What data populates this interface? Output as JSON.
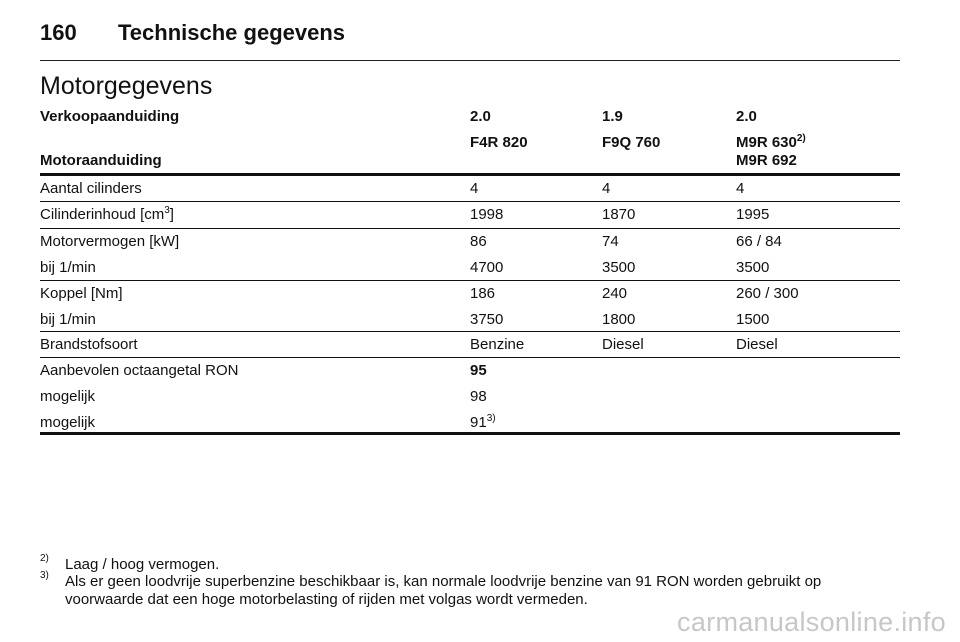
{
  "header": {
    "page_number": "160",
    "title": "Technische gegevens"
  },
  "section_title": "Motorgegevens",
  "table": {
    "sales_label": "Verkoopaanduiding",
    "engine_label": "Motoraanduiding",
    "columns": [
      {
        "sales": "2.0",
        "engine": "F4R 820",
        "engine_sup": "",
        "engine_line2": ""
      },
      {
        "sales": "1.9",
        "engine": "F9Q 760",
        "engine_sup": "",
        "engine_line2": ""
      },
      {
        "sales": "2.0",
        "engine": "M9R 630",
        "engine_sup": "2)",
        "engine_line2": "M9R 692"
      }
    ],
    "rows": [
      {
        "label": "Aantal cilinders",
        "values": [
          "4",
          "4",
          "4"
        ]
      },
      {
        "label": "Cilinderinhoud [cm",
        "label_sup": "3",
        "label_after": "]",
        "values": [
          "1998",
          "1870",
          "1995"
        ]
      },
      {
        "label": "Motorvermogen [kW]",
        "values": [
          "86",
          "74",
          "66 / 84"
        ]
      },
      {
        "label": "bij 1/min",
        "values": [
          "4700",
          "3500",
          "3500"
        ]
      },
      {
        "label": "Koppel [Nm]",
        "values": [
          "186",
          "240",
          "260 / 300"
        ]
      },
      {
        "label": "bij 1/min",
        "values": [
          "3750",
          "1800",
          "1500"
        ]
      },
      {
        "label": "Brandstofsoort",
        "values": [
          "Benzine",
          "Diesel",
          "Diesel"
        ]
      },
      {
        "label": "Aanbevolen octaangetal RON",
        "values": [
          "95",
          "",
          ""
        ]
      },
      {
        "label": "mogelijk",
        "values": [
          "98",
          "",
          ""
        ]
      },
      {
        "label": "mogelijk",
        "values": [
          "91",
          "",
          ""
        ],
        "value_sup": "3)"
      }
    ]
  },
  "footnotes": [
    {
      "mark": "2)",
      "text": "Laag / hoog vermogen."
    },
    {
      "mark": "3)",
      "text": "Als er geen loodvrije superbenzine beschikbaar is, kan normale loodvrije benzine van 91 RON worden gebruikt op voorwaarde dat een hoge motorbelasting of rijden met volgas wordt vermeden."
    }
  ],
  "watermark": "carmanualsonline.info"
}
